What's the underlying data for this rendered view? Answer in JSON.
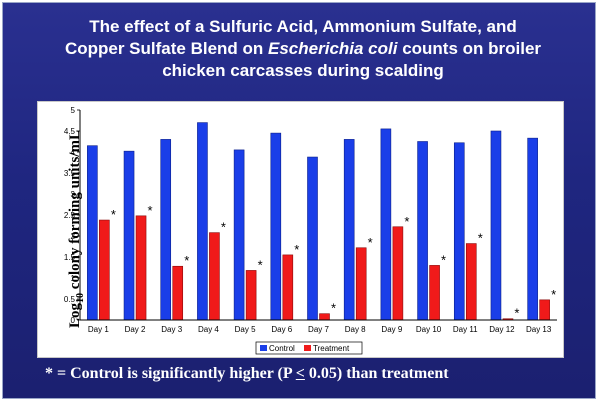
{
  "slide": {
    "title_line1": "The effect of a Sulfuric Acid, Ammonium Sulfate, and",
    "title_line2_italic": "Escherichia coli",
    "title_line2_pre": "Copper Sulfate Blend on ",
    "title_line2_post": " counts on broiler",
    "title_line3": "chicken carcasses during scalding",
    "footnote_pre": "* = Control is significantly higher (P ",
    "footnote_leq": "<",
    "footnote_post": " 0.05) than treatment",
    "colors": {
      "background": "#1f2680",
      "control": "#1a3ee8",
      "treatment": "#f01a1a"
    }
  },
  "chart_data": {
    "type": "bar",
    "title": "The effect of a Sulfuric Acid, Ammonium Sulfate, and Copper Sulfate Blend on Escherichia coli counts on broiler chicken carcasses during scalding",
    "ylabel_pre": "Log",
    "ylabel_sub": "10",
    "ylabel_post": " colony forming units/mL",
    "xlabel": "",
    "ylim": [
      0,
      5
    ],
    "yticks": [
      "0",
      "0.5",
      "1",
      "1.5",
      "2",
      "2.5",
      "3",
      "3.5",
      "4",
      "4.5",
      "5"
    ],
    "grid": false,
    "legend_position": "bottom-center",
    "categories": [
      "Day 1",
      "Day 2",
      "Day 3",
      "Day 4",
      "Day 5",
      "Day 6",
      "Day 7",
      "Day 8",
      "Day 9",
      "Day 10",
      "Day 11",
      "Day 12",
      "Day 13"
    ],
    "series": [
      {
        "name": "Control",
        "color": "#1a3ee8",
        "values": [
          4.15,
          4.02,
          4.3,
          4.7,
          4.05,
          4.45,
          3.88,
          4.3,
          4.55,
          4.25,
          4.22,
          4.5,
          4.33
        ]
      },
      {
        "name": "Treatment",
        "color": "#f01a1a",
        "values": [
          2.38,
          2.48,
          1.28,
          2.08,
          1.18,
          1.55,
          0.15,
          1.72,
          2.22,
          1.3,
          1.82,
          0.03,
          0.48
        ]
      }
    ],
    "annotations": [
      "*",
      "*",
      "*",
      "*",
      "*",
      "*",
      "*",
      "*",
      "*",
      "*",
      "*",
      "*",
      "*"
    ]
  }
}
